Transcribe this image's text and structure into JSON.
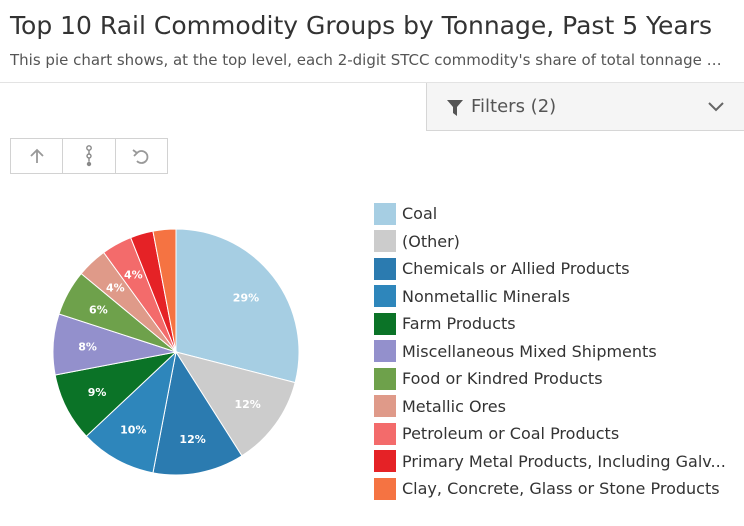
{
  "header": {
    "title": "Top 10 Rail Commodity Groups by Tonnage, Past 5 Years",
    "subtitle": "This pie chart shows, at the top level, each 2-digit STCC commodity's share of total tonnage over t..."
  },
  "filters": {
    "label": "Filters (2)",
    "icon": "funnel-icon",
    "expand_icon": "chevron-down-icon"
  },
  "toolbar": {
    "buttons": [
      {
        "icon": "arrow-up-icon"
      },
      {
        "icon": "drill-down-icon"
      },
      {
        "icon": "undo-icon"
      }
    ]
  },
  "chart_data": {
    "type": "pie",
    "title": "",
    "legend_position": "right",
    "slices": [
      {
        "label": "Coal",
        "value": 29,
        "display": "29%",
        "color": "#a6cee3"
      },
      {
        "label": "(Other)",
        "value": 12,
        "display": "12%",
        "color": "#cccccc"
      },
      {
        "label": "Chemicals or Allied Products",
        "value": 12,
        "display": "12%",
        "color": "#2b7bb0"
      },
      {
        "label": "Nonmetallic Minerals",
        "value": 10,
        "display": "10%",
        "color": "#2e86bb"
      },
      {
        "label": "Farm Products",
        "value": 9,
        "display": "9%",
        "color": "#0b7327"
      },
      {
        "label": "Miscellaneous Mixed Shipments",
        "value": 8,
        "display": "8%",
        "color": "#9390cc"
      },
      {
        "label": "Food or Kindred Products",
        "value": 6,
        "display": "6%",
        "color": "#6ea14b"
      },
      {
        "label": "Metallic Ores",
        "value": 4,
        "display": "4%",
        "color": "#df9a89"
      },
      {
        "label": "Petroleum or Coal Products",
        "value": 4,
        "display": "4%",
        "color": "#f36b6b"
      },
      {
        "label": "Primary Metal Products, Including Galv...",
        "value": 3,
        "display": "",
        "color": "#e52226"
      },
      {
        "label": "Clay, Concrete, Glass or Stone Products",
        "value": 3,
        "display": "",
        "color": "#f57342"
      }
    ]
  }
}
